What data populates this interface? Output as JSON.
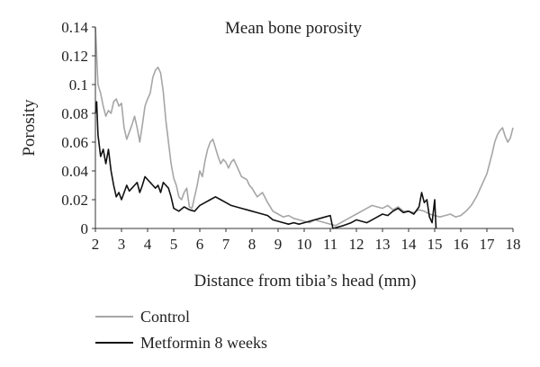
{
  "chart_data": {
    "type": "line",
    "title": "Mean bone porosity",
    "xlabel": "Distance from tibia’s head (mm)",
    "ylabel": "Porosity",
    "xlim": [
      2,
      18
    ],
    "ylim": [
      0,
      0.14
    ],
    "xticks": [
      "2",
      "3",
      "4",
      "5",
      "6",
      "7",
      "8",
      "9",
      "10",
      "11",
      "12",
      "13",
      "14",
      "15",
      "16",
      "17",
      "18"
    ],
    "yticks": [
      "0",
      "0.02",
      "0.04",
      "0.06",
      "0.08",
      "0.1",
      "0.12",
      "0.14"
    ],
    "grid": false,
    "legend_position": "bottom-left",
    "series": [
      {
        "name": "Control",
        "color": "#a6a6a6",
        "x": [
          2.0,
          2.1,
          2.2,
          2.3,
          2.4,
          2.5,
          2.6,
          2.7,
          2.8,
          2.9,
          3.0,
          3.1,
          3.2,
          3.3,
          3.4,
          3.5,
          3.6,
          3.7,
          3.8,
          3.9,
          4.0,
          4.1,
          4.2,
          4.3,
          4.4,
          4.5,
          4.6,
          4.7,
          4.8,
          4.9,
          5.0,
          5.1,
          5.2,
          5.3,
          5.4,
          5.5,
          5.6,
          5.7,
          5.8,
          5.9,
          6.0,
          6.1,
          6.2,
          6.3,
          6.4,
          6.5,
          6.6,
          6.7,
          6.8,
          6.9,
          7.0,
          7.1,
          7.2,
          7.3,
          7.4,
          7.5,
          7.6,
          7.7,
          7.8,
          7.9,
          8.0,
          8.2,
          8.4,
          8.6,
          8.8,
          9.0,
          9.2,
          9.4,
          9.6,
          9.8,
          10.0,
          10.2,
          10.4,
          10.6,
          10.8,
          11.0,
          11.2,
          11.4,
          11.6,
          11.8,
          12.0,
          12.2,
          12.4,
          12.6,
          12.8,
          13.0,
          13.2,
          13.4,
          13.6,
          13.8,
          14.0,
          14.2,
          14.4,
          14.6,
          14.8,
          15.0,
          15.2,
          15.4,
          15.6,
          15.8,
          16.0,
          16.2,
          16.4,
          16.6,
          16.8,
          17.0,
          17.1,
          17.2,
          17.3,
          17.4,
          17.5,
          17.6,
          17.7,
          17.8,
          17.9,
          18.0
        ],
        "values": [
          0.14,
          0.1,
          0.094,
          0.085,
          0.078,
          0.082,
          0.08,
          0.088,
          0.09,
          0.085,
          0.087,
          0.07,
          0.062,
          0.067,
          0.072,
          0.078,
          0.07,
          0.06,
          0.072,
          0.085,
          0.09,
          0.094,
          0.105,
          0.11,
          0.112,
          0.108,
          0.095,
          0.075,
          0.06,
          0.045,
          0.035,
          0.03,
          0.022,
          0.02,
          0.025,
          0.028,
          0.015,
          0.014,
          0.022,
          0.03,
          0.04,
          0.036,
          0.047,
          0.055,
          0.06,
          0.062,
          0.056,
          0.05,
          0.045,
          0.048,
          0.046,
          0.042,
          0.046,
          0.048,
          0.044,
          0.04,
          0.036,
          0.035,
          0.034,
          0.03,
          0.028,
          0.022,
          0.025,
          0.018,
          0.012,
          0.01,
          0.008,
          0.009,
          0.007,
          0.006,
          0.005,
          0.004,
          0.006,
          0.005,
          0.004,
          0.003,
          0.002,
          0.004,
          0.006,
          0.008,
          0.01,
          0.012,
          0.014,
          0.016,
          0.015,
          0.014,
          0.016,
          0.013,
          0.015,
          0.012,
          0.012,
          0.011,
          0.013,
          0.012,
          0.01,
          0.009,
          0.008,
          0.009,
          0.01,
          0.008,
          0.009,
          0.012,
          0.016,
          0.022,
          0.03,
          0.038,
          0.045,
          0.052,
          0.06,
          0.065,
          0.068,
          0.07,
          0.064,
          0.06,
          0.063,
          0.07
        ]
      },
      {
        "name": "Metformin 8 weeks",
        "color": "#111111",
        "x": [
          2.0,
          2.05,
          2.1,
          2.2,
          2.3,
          2.4,
          2.5,
          2.6,
          2.7,
          2.8,
          2.9,
          3.0,
          3.1,
          3.2,
          3.3,
          3.4,
          3.5,
          3.6,
          3.7,
          3.8,
          3.9,
          4.0,
          4.1,
          4.2,
          4.3,
          4.4,
          4.5,
          4.6,
          4.7,
          4.8,
          4.9,
          5.0,
          5.2,
          5.4,
          5.6,
          5.8,
          6.0,
          6.2,
          6.4,
          6.6,
          6.8,
          7.0,
          7.2,
          7.4,
          7.6,
          7.8,
          8.0,
          8.2,
          8.4,
          8.6,
          8.8,
          9.0,
          9.2,
          9.4,
          9.6,
          9.8,
          10.0,
          10.2,
          10.4,
          10.6,
          10.8,
          11.0,
          11.1,
          11.3,
          11.5,
          11.8,
          12.0,
          12.2,
          12.4,
          12.6,
          12.8,
          13.0,
          13.2,
          13.4,
          13.6,
          13.8,
          14.0,
          14.2,
          14.4,
          14.5,
          14.6,
          14.7,
          14.8,
          14.9,
          15.0,
          15.05
        ],
        "values": [
          0.08,
          0.088,
          0.065,
          0.05,
          0.055,
          0.045,
          0.055,
          0.04,
          0.03,
          0.022,
          0.025,
          0.02,
          0.025,
          0.03,
          0.026,
          0.028,
          0.03,
          0.032,
          0.025,
          0.03,
          0.036,
          0.034,
          0.032,
          0.03,
          0.028,
          0.03,
          0.025,
          0.032,
          0.03,
          0.028,
          0.022,
          0.014,
          0.012,
          0.015,
          0.013,
          0.012,
          0.016,
          0.018,
          0.02,
          0.022,
          0.02,
          0.018,
          0.016,
          0.015,
          0.014,
          0.013,
          0.012,
          0.011,
          0.01,
          0.009,
          0.006,
          0.005,
          0.004,
          0.003,
          0.004,
          0.003,
          0.004,
          0.005,
          0.006,
          0.007,
          0.008,
          0.009,
          0.0,
          0.001,
          0.002,
          0.004,
          0.006,
          0.005,
          0.004,
          0.006,
          0.008,
          0.01,
          0.009,
          0.012,
          0.014,
          0.011,
          0.012,
          0.01,
          0.015,
          0.025,
          0.018,
          0.02,
          0.008,
          0.004,
          0.02,
          0.0
        ]
      }
    ]
  }
}
